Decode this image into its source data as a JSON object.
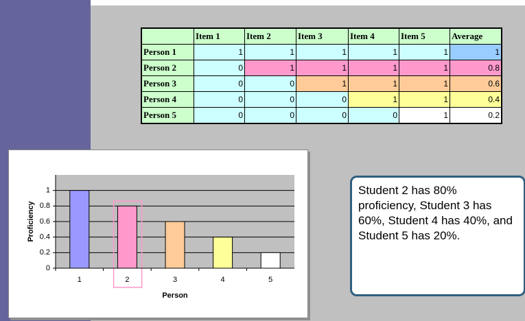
{
  "table": {
    "columns": [
      "",
      "Item 1",
      "Item 2",
      "Item 3",
      "Item 4",
      "Item 5",
      "Average"
    ],
    "header_fill": "#ccffcc",
    "rows": [
      {
        "label": "Person 1",
        "values": [
          1,
          1,
          1,
          1,
          1,
          1
        ],
        "fills": [
          "#ccffff",
          "#ccffff",
          "#ccffff",
          "#ccffff",
          "#ccffff",
          "#99ccff"
        ]
      },
      {
        "label": "Person 2",
        "values": [
          0,
          1,
          1,
          1,
          1,
          0.8
        ],
        "fills": [
          "#ccffff",
          "#ff99cc",
          "#ff99cc",
          "#ff99cc",
          "#ff99cc",
          "#ff99cc"
        ]
      },
      {
        "label": "Person 3",
        "values": [
          0,
          0,
          1,
          1,
          1,
          0.6
        ],
        "fills": [
          "#ccffff",
          "#ccffff",
          "#ffcc99",
          "#ffcc99",
          "#ffcc99",
          "#ffcc99"
        ]
      },
      {
        "label": "Person 4",
        "values": [
          0,
          0,
          0,
          1,
          1,
          0.4
        ],
        "fills": [
          "#ccffff",
          "#ccffff",
          "#ccffff",
          "#ffff99",
          "#ffff99",
          "#ffff99"
        ]
      },
      {
        "label": "Person 5",
        "values": [
          0,
          0,
          0,
          0,
          1,
          0.2
        ],
        "fills": [
          "#ccffff",
          "#ccffff",
          "#ccffff",
          "#ccffff",
          "#ffffff",
          "#ffffff"
        ]
      }
    ]
  },
  "chart_data": {
    "type": "bar",
    "x_label": "Person",
    "y_label": "Proficiency",
    "categories": [
      "1",
      "2",
      "3",
      "4",
      "5"
    ],
    "values": [
      1,
      0.8,
      0.6,
      0.4,
      0.2
    ],
    "colors": [
      "#9999ff",
      "#ff99cc",
      "#ffcc99",
      "#ffff99",
      "#ffffff"
    ],
    "ylim": [
      0,
      1.2
    ],
    "yticks": [
      0,
      0.2,
      0.4,
      0.6,
      0.8,
      1
    ],
    "grid": true
  },
  "callout": {
    "text": "Student 2 has 80% proficiency, Student 3 has 60%, Student 4 has 40%, and Student 5 has 20%."
  }
}
